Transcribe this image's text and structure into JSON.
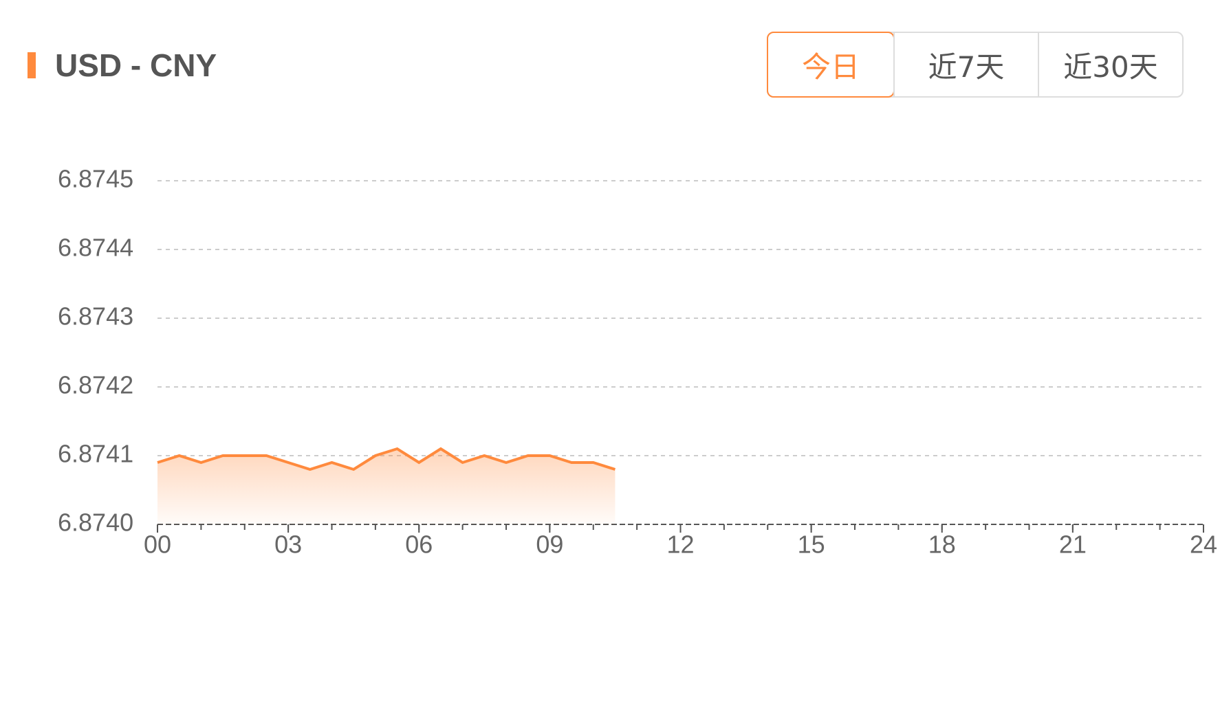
{
  "header": {
    "title": "USD - CNY",
    "tabs": [
      {
        "label": "今日",
        "active": true
      },
      {
        "label": "近7天",
        "active": false
      },
      {
        "label": "近30天",
        "active": false
      }
    ]
  },
  "chart_data": {
    "type": "area",
    "x": [
      0,
      0.5,
      1,
      1.5,
      2,
      2.5,
      3,
      3.5,
      4,
      4.5,
      5,
      5.5,
      6,
      6.5,
      7,
      7.5,
      8,
      8.5,
      9,
      9.5,
      10,
      10.5
    ],
    "series": [
      {
        "color": "#ff8a3d",
        "values": [
          6.87409,
          6.8741,
          6.87409,
          6.8741,
          6.8741,
          6.8741,
          6.87409,
          6.87408,
          6.87409,
          6.87408,
          6.8741,
          6.87411,
          6.87409,
          6.87411,
          6.87409,
          6.8741,
          6.87409,
          6.8741,
          6.8741,
          6.87409,
          6.87409,
          6.87408
        ]
      }
    ],
    "xlim": [
      0,
      24
    ],
    "xticks": [
      {
        "value": 0,
        "label": "00"
      },
      {
        "value": 3,
        "label": "03"
      },
      {
        "value": 6,
        "label": "06"
      },
      {
        "value": 9,
        "label": "09"
      },
      12,
      15,
      18,
      21,
      24
    ],
    "ylim": [
      6.874,
      6.8745
    ],
    "yticks": [
      {
        "value": 6.874,
        "label": "6.8740"
      },
      6.8741,
      6.8742,
      6.8743,
      6.8744,
      6.8745
    ],
    "grid": true
  }
}
